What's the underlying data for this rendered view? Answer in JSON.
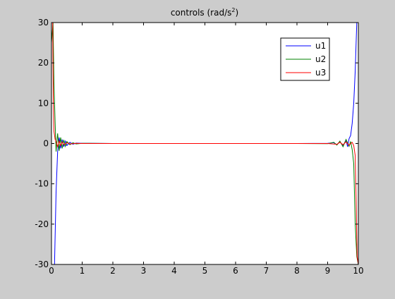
{
  "chart_data": {
    "type": "line",
    "title": "controls (rad/s",
    "title_superscript": "2",
    "title_suffix": ")",
    "xlabel": "",
    "ylabel": "",
    "xlim": [
      0,
      10
    ],
    "ylim": [
      -30,
      30
    ],
    "xticks": [
      "0",
      "1",
      "2",
      "3",
      "4",
      "5",
      "6",
      "7",
      "8",
      "9",
      "10"
    ],
    "yticks": [
      "-30",
      "-20",
      "-10",
      "0",
      "10",
      "20",
      "30"
    ],
    "grid": false,
    "legend_position": "top-right",
    "series": [
      {
        "name": "u1",
        "color": "#0000ff",
        "points": [
          [
            0.0,
            -30
          ],
          [
            0.1,
            -30
          ],
          [
            0.15,
            -12
          ],
          [
            0.2,
            -2
          ],
          [
            0.25,
            1.5
          ],
          [
            0.3,
            -1.2
          ],
          [
            0.35,
            1.0
          ],
          [
            0.4,
            -0.8
          ],
          [
            0.45,
            0.6
          ],
          [
            0.5,
            -0.5
          ],
          [
            0.6,
            0.3
          ],
          [
            0.7,
            -0.2
          ],
          [
            0.8,
            0.1
          ],
          [
            1.0,
            0.05
          ],
          [
            2.0,
            0.0
          ],
          [
            5.0,
            0.0
          ],
          [
            8.0,
            0.0
          ],
          [
            9.0,
            0.05
          ],
          [
            9.2,
            0.2
          ],
          [
            9.3,
            -0.3
          ],
          [
            9.4,
            0.4
          ],
          [
            9.5,
            -0.5
          ],
          [
            9.6,
            0.8
          ],
          [
            9.65,
            -0.8
          ],
          [
            9.7,
            1.2
          ],
          [
            9.75,
            2.0
          ],
          [
            9.8,
            5.0
          ],
          [
            9.85,
            10.0
          ],
          [
            9.9,
            18.0
          ],
          [
            9.95,
            30
          ],
          [
            10.0,
            30
          ]
        ]
      },
      {
        "name": "u2",
        "color": "#008000",
        "points": [
          [
            0.0,
            25
          ],
          [
            0.05,
            30
          ],
          [
            0.08,
            15
          ],
          [
            0.12,
            5
          ],
          [
            0.15,
            -2
          ],
          [
            0.2,
            2.5
          ],
          [
            0.25,
            -1.8
          ],
          [
            0.3,
            1.5
          ],
          [
            0.35,
            -1.2
          ],
          [
            0.4,
            0.9
          ],
          [
            0.45,
            -0.7
          ],
          [
            0.5,
            0.5
          ],
          [
            0.6,
            -0.3
          ],
          [
            0.7,
            0.2
          ],
          [
            0.8,
            -0.1
          ],
          [
            1.0,
            0.05
          ],
          [
            2.0,
            0.0
          ],
          [
            5.0,
            0.0
          ],
          [
            8.0,
            0.0
          ],
          [
            9.0,
            -0.05
          ],
          [
            9.2,
            0.3
          ],
          [
            9.3,
            -0.4
          ],
          [
            9.4,
            0.6
          ],
          [
            9.5,
            -0.8
          ],
          [
            9.6,
            1.0
          ],
          [
            9.7,
            -0.7
          ],
          [
            9.75,
            0.5
          ],
          [
            9.8,
            -1.5
          ],
          [
            9.85,
            -5.0
          ],
          [
            9.9,
            -20.0
          ],
          [
            9.95,
            -28.0
          ],
          [
            10.0,
            -30
          ]
        ]
      },
      {
        "name": "u3",
        "color": "#ff0000",
        "points": [
          [
            0.0,
            30
          ],
          [
            0.04,
            30
          ],
          [
            0.06,
            10
          ],
          [
            0.08,
            3
          ],
          [
            0.12,
            1.0
          ],
          [
            0.15,
            0.5
          ],
          [
            0.2,
            -0.8
          ],
          [
            0.25,
            0.6
          ],
          [
            0.3,
            -0.5
          ],
          [
            0.35,
            0.4
          ],
          [
            0.4,
            -0.3
          ],
          [
            0.5,
            0.2
          ],
          [
            0.6,
            -0.1
          ],
          [
            0.8,
            0.05
          ],
          [
            1.0,
            0.0
          ],
          [
            5.0,
            0.0
          ],
          [
            8.0,
            0.0
          ],
          [
            9.0,
            0.0
          ],
          [
            9.3,
            -0.2
          ],
          [
            9.4,
            0.3
          ],
          [
            9.5,
            -0.3
          ],
          [
            9.6,
            0.4
          ],
          [
            9.7,
            -0.4
          ],
          [
            9.8,
            0.3
          ],
          [
            9.85,
            -0.5
          ],
          [
            9.9,
            -3.0
          ],
          [
            9.93,
            -15.0
          ],
          [
            9.96,
            -28.0
          ],
          [
            10.0,
            -30
          ]
        ]
      }
    ]
  }
}
